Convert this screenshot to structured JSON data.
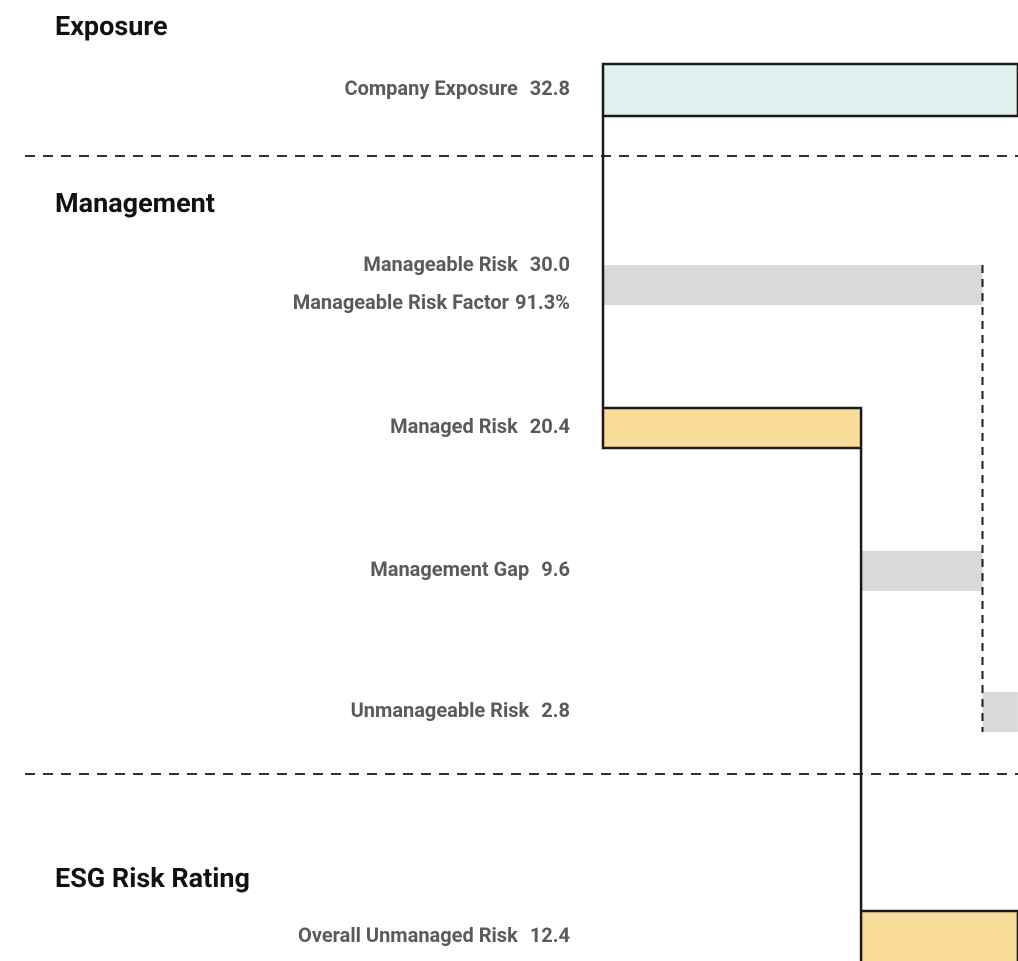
{
  "chart_data": {
    "type": "waterfall",
    "sections": [
      "Exposure",
      "Management",
      "ESG Risk Rating"
    ],
    "categories": [
      "Company Exposure",
      "Manageable Risk",
      "Managed Risk",
      "Management Gap",
      "Unmanageable Risk",
      "Overall Unmanaged Risk"
    ],
    "values": [
      32.8,
      30.0,
      20.4,
      9.6,
      2.8,
      12.4
    ],
    "value_labels": [
      "32.8",
      "30.0",
      "20.4",
      "9.6",
      "2.8",
      "12.4"
    ],
    "colors": [
      "#dff0ef",
      "#d9d9d9",
      "#f9dc98",
      "#d9d9d9",
      "#d9d9d9",
      "#f9dc98"
    ],
    "outlined": [
      true,
      false,
      true,
      false,
      false,
      true
    ],
    "factor": {
      "name": "Manageable Risk Factor",
      "value": 91.3,
      "label": "91.3%"
    }
  }
}
